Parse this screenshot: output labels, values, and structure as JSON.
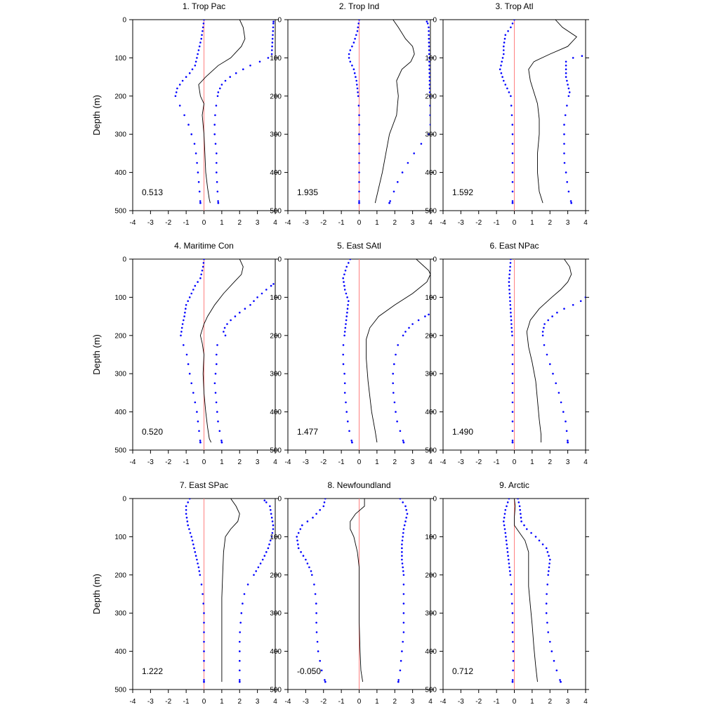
{
  "chart_data": {
    "type": "line",
    "layout": "3x3 panel grid",
    "shared": {
      "ylabel": "Depth (m)",
      "xlim": [
        -4,
        4
      ],
      "ylim": [
        0,
        500
      ],
      "yinverted": true,
      "xticks": [
        -4,
        -3,
        -2,
        -1,
        0,
        1,
        2,
        3,
        4
      ],
      "yticks": [
        0,
        100,
        200,
        300,
        400,
        500
      ],
      "reference_line": {
        "x": 0,
        "color": "#ff8080"
      },
      "line_color": "#000000",
      "dot_color": "#0000ff",
      "grid": false
    },
    "panels": [
      {
        "title": "1. Trop Pac",
        "value_label": "0.513",
        "mean": {
          "x": [
            2.0,
            2.2,
            2.3,
            2.1,
            1.5,
            0.8,
            0.1,
            -0.3,
            -0.2,
            0.0,
            -0.1,
            0.0,
            0.05,
            0.1,
            0.2,
            0.3,
            0.35
          ],
          "y": [
            0,
            20,
            50,
            70,
            100,
            120,
            150,
            170,
            200,
            220,
            250,
            300,
            350,
            400,
            440,
            470,
            480
          ]
        },
        "lower": {
          "x": [
            0.0,
            -0.05,
            -0.15,
            -0.3,
            -0.4,
            -0.5,
            -0.8,
            -1.2,
            -1.5,
            -1.6,
            -1.4,
            -1.2,
            -0.9,
            -0.7,
            -0.5,
            -0.4,
            -0.3,
            -0.2
          ],
          "y": [
            0,
            20,
            50,
            80,
            100,
            120,
            140,
            160,
            180,
            200,
            220,
            240,
            270,
            300,
            330,
            370,
            420,
            480
          ]
        },
        "upper": {
          "x": [
            3.9,
            3.8,
            3.4,
            2.6,
            1.8,
            1.3,
            1.0,
            0.8,
            0.7,
            0.6,
            0.6,
            0.7,
            0.7,
            0.8
          ],
          "y": [
            5,
            95,
            105,
            120,
            140,
            155,
            170,
            190,
            220,
            260,
            300,
            350,
            400,
            480
          ]
        }
      },
      {
        "title": "2. Trop Ind",
        "value_label": "1.935",
        "mean": {
          "x": [
            1.9,
            2.2,
            2.6,
            3.0,
            3.1,
            2.9,
            2.4,
            2.1,
            2.2,
            2.1,
            1.7,
            1.3,
            0.9
          ],
          "y": [
            0,
            20,
            50,
            70,
            90,
            110,
            130,
            160,
            200,
            250,
            300,
            400,
            480
          ]
        },
        "lower": {
          "x": [
            0.0,
            -0.1,
            -0.3,
            -0.5,
            -0.6,
            -0.5,
            -0.3,
            -0.15,
            -0.05,
            0.0,
            0.0,
            0.0,
            0.0,
            0.0
          ],
          "y": [
            0,
            30,
            60,
            80,
            95,
            110,
            130,
            160,
            200,
            250,
            300,
            350,
            420,
            480
          ]
        },
        "upper": {
          "x": [
            3.8,
            3.9,
            4.0,
            3.9,
            3.4,
            3.0,
            2.6,
            2.2,
            1.7
          ],
          "y": [
            5,
            15,
            280,
            300,
            330,
            355,
            385,
            420,
            480
          ]
        }
      },
      {
        "title": "3. Trop Atl",
        "value_label": "1.592",
        "mean": {
          "x": [
            2.3,
            2.7,
            3.5,
            3.0,
            2.0,
            1.1,
            0.8,
            0.9,
            1.1,
            1.3,
            1.4,
            1.4,
            1.3,
            1.3,
            1.4,
            1.6
          ],
          "y": [
            0,
            20,
            45,
            70,
            90,
            110,
            130,
            160,
            190,
            220,
            260,
            300,
            350,
            400,
            450,
            480
          ]
        },
        "lower": {
          "x": [
            0.0,
            -0.2,
            -0.5,
            -0.6,
            -0.6,
            -0.7,
            -0.8,
            -0.6,
            -0.4,
            -0.2,
            -0.15,
            -0.1,
            -0.1,
            -0.1,
            -0.1,
            -0.1
          ],
          "y": [
            0,
            20,
            40,
            70,
            90,
            110,
            130,
            160,
            180,
            200,
            240,
            280,
            320,
            360,
            420,
            480
          ]
        },
        "upper": {
          "x": [
            3.8,
            3.3,
            2.9,
            2.9,
            2.9,
            3.0,
            3.1,
            3.0,
            2.9,
            2.8,
            2.8,
            2.8,
            2.8,
            2.9,
            3.0,
            3.2
          ],
          "y": [
            95,
            100,
            110,
            130,
            150,
            170,
            190,
            210,
            240,
            270,
            300,
            340,
            370,
            400,
            440,
            480
          ]
        }
      },
      {
        "title": "4. Maritime Con",
        "value_label": "0.520",
        "mean": {
          "x": [
            2.0,
            2.2,
            2.1,
            1.7,
            1.1,
            0.6,
            0.2,
            0.0,
            -0.2,
            -0.1,
            0.0,
            -0.05,
            0.0,
            0.1,
            0.2,
            0.3,
            0.4
          ],
          "y": [
            0,
            20,
            40,
            60,
            90,
            120,
            150,
            170,
            200,
            220,
            250,
            300,
            350,
            400,
            440,
            470,
            480
          ]
        },
        "lower": {
          "x": [
            0.0,
            -0.05,
            -0.2,
            -0.5,
            -0.8,
            -1.0,
            -1.1,
            -1.2,
            -1.3,
            -1.2,
            -1.0,
            -0.9,
            -0.8,
            -0.6,
            -0.4,
            -0.3,
            -0.2
          ],
          "y": [
            0,
            20,
            50,
            70,
            100,
            120,
            150,
            170,
            200,
            220,
            240,
            270,
            300,
            350,
            400,
            440,
            480
          ]
        },
        "upper": {
          "x": [
            3.9,
            3.5,
            3.0,
            2.6,
            2.0,
            1.5,
            1.2,
            1.1,
            1.2,
            0.8,
            0.7,
            0.7,
            0.6,
            0.7,
            0.8,
            1.0
          ],
          "y": [
            65,
            80,
            100,
            120,
            140,
            160,
            175,
            190,
            200,
            210,
            240,
            280,
            320,
            380,
            430,
            480
          ]
        }
      },
      {
        "title": "5. East SAtl",
        "value_label": "1.477",
        "mean": {
          "x": [
            3.2,
            3.9,
            4.0,
            3.8,
            3.0,
            2.0,
            1.1,
            0.6,
            0.4,
            0.4,
            0.5,
            0.7,
            0.9,
            1.0
          ],
          "y": [
            0,
            30,
            40,
            60,
            90,
            120,
            150,
            180,
            210,
            260,
            320,
            400,
            450,
            480
          ]
        },
        "lower": {
          "x": [
            -0.5,
            -0.7,
            -0.9,
            -0.8,
            -0.6,
            -0.7,
            -0.8,
            -0.9,
            -0.9,
            -0.8,
            -0.8,
            -0.7,
            -0.6,
            -0.4
          ],
          "y": [
            0,
            20,
            50,
            80,
            110,
            150,
            190,
            230,
            270,
            310,
            350,
            400,
            440,
            480
          ]
        },
        "upper": {
          "x": [
            3.9,
            3.5,
            3.0,
            2.6,
            2.2,
            2.0,
            1.9,
            1.9,
            2.0,
            2.1,
            2.3,
            2.5
          ],
          "y": [
            145,
            155,
            170,
            190,
            220,
            260,
            300,
            340,
            380,
            420,
            450,
            480
          ]
        }
      },
      {
        "title": "6. East NPac",
        "value_label": "1.490",
        "mean": {
          "x": [
            2.8,
            3.1,
            3.2,
            3.0,
            2.6,
            2.1,
            1.4,
            0.9,
            0.7,
            0.8,
            1.0,
            1.2,
            1.3,
            1.4,
            1.5,
            1.5
          ],
          "y": [
            0,
            20,
            40,
            60,
            80,
            100,
            130,
            160,
            190,
            230,
            270,
            320,
            370,
            420,
            460,
            480
          ]
        },
        "lower": {
          "x": [
            -0.2,
            -0.25,
            -0.3,
            -0.25,
            -0.2,
            -0.15,
            -0.1,
            -0.1,
            -0.1,
            -0.1,
            -0.1,
            -0.1,
            -0.1,
            -0.1,
            -0.1
          ],
          "y": [
            0,
            30,
            60,
            100,
            140,
            180,
            210,
            240,
            280,
            320,
            360,
            400,
            440,
            460,
            480
          ]
        },
        "upper": {
          "x": [
            4.0,
            3.6,
            3.0,
            2.4,
            2.0,
            1.7,
            1.6,
            1.6,
            1.7,
            1.9,
            2.1,
            2.3,
            2.5,
            2.7,
            2.9,
            3.0
          ],
          "y": [
            100,
            115,
            125,
            140,
            155,
            170,
            190,
            210,
            230,
            260,
            290,
            320,
            350,
            390,
            430,
            480
          ]
        }
      },
      {
        "title": "7. East SPac",
        "value_label": "1.222",
        "mean": {
          "x": [
            1.5,
            1.8,
            2.0,
            1.9,
            1.5,
            1.2,
            1.1,
            1.05,
            1.0,
            1.0,
            1.0,
            1.0
          ],
          "y": [
            0,
            20,
            40,
            60,
            80,
            100,
            140,
            200,
            260,
            330,
            400,
            480
          ]
        },
        "lower": {
          "x": [
            -0.8,
            -1.0,
            -1.0,
            -0.9,
            -0.7,
            -0.5,
            -0.3,
            -0.15,
            -0.05,
            0.0,
            0.0,
            0.0,
            0.0
          ],
          "y": [
            0,
            20,
            40,
            70,
            100,
            140,
            180,
            220,
            260,
            300,
            350,
            420,
            480
          ]
        },
        "upper": {
          "x": [
            3.4,
            3.7,
            3.9,
            3.8,
            3.6,
            3.3,
            2.8,
            2.4,
            2.2,
            2.1,
            2.0,
            2.0,
            2.0
          ],
          "y": [
            5,
            20,
            75,
            100,
            130,
            160,
            200,
            230,
            260,
            300,
            360,
            420,
            480
          ]
        }
      },
      {
        "title": "8. Newfoundland",
        "value_label": "-0.050",
        "mean": {
          "x": [
            0.3,
            0.3,
            -0.2,
            -0.5,
            -0.5,
            -0.3,
            -0.1,
            0.0,
            0.0,
            0.0,
            0.05,
            0.1,
            0.2
          ],
          "y": [
            0,
            20,
            40,
            60,
            80,
            100,
            140,
            180,
            250,
            320,
            400,
            450,
            480
          ]
        },
        "lower": {
          "x": [
            -1.9,
            -2.0,
            -2.6,
            -3.2,
            -3.5,
            -3.4,
            -3.0,
            -2.7,
            -2.5,
            -2.4,
            -2.4,
            -2.3,
            -2.1,
            -1.9
          ],
          "y": [
            0,
            20,
            50,
            70,
            100,
            130,
            160,
            190,
            230,
            280,
            340,
            400,
            450,
            480
          ]
        },
        "upper": {
          "x": [
            2.3,
            2.6,
            2.7,
            2.5,
            2.4,
            2.4,
            2.5,
            2.5,
            2.5,
            2.5,
            2.4,
            2.3,
            2.2
          ],
          "y": [
            0,
            20,
            40,
            80,
            120,
            160,
            200,
            250,
            300,
            350,
            400,
            450,
            480
          ]
        }
      },
      {
        "title": "9. Arctic",
        "value_label": "0.712",
        "mean": {
          "x": [
            0.0,
            0.05,
            0.0,
            0.0,
            0.3,
            0.6,
            0.8,
            0.8,
            0.8,
            0.9,
            1.0,
            1.1,
            1.2,
            1.3
          ],
          "y": [
            0,
            20,
            50,
            70,
            90,
            110,
            140,
            180,
            230,
            280,
            330,
            390,
            440,
            480
          ]
        },
        "lower": {
          "x": [
            -0.3,
            -0.5,
            -0.6,
            -0.5,
            -0.4,
            -0.3,
            -0.2,
            -0.15,
            -0.1,
            -0.1,
            -0.05,
            -0.1
          ],
          "y": [
            0,
            30,
            60,
            90,
            130,
            170,
            210,
            250,
            300,
            350,
            420,
            480
          ]
        },
        "upper": {
          "x": [
            0.2,
            0.3,
            0.4,
            0.7,
            1.2,
            1.8,
            2.0,
            1.9,
            1.8,
            1.8,
            1.9,
            2.1,
            2.3,
            2.6
          ],
          "y": [
            0,
            20,
            60,
            80,
            100,
            130,
            160,
            200,
            260,
            300,
            350,
            400,
            440,
            480
          ]
        }
      }
    ]
  }
}
